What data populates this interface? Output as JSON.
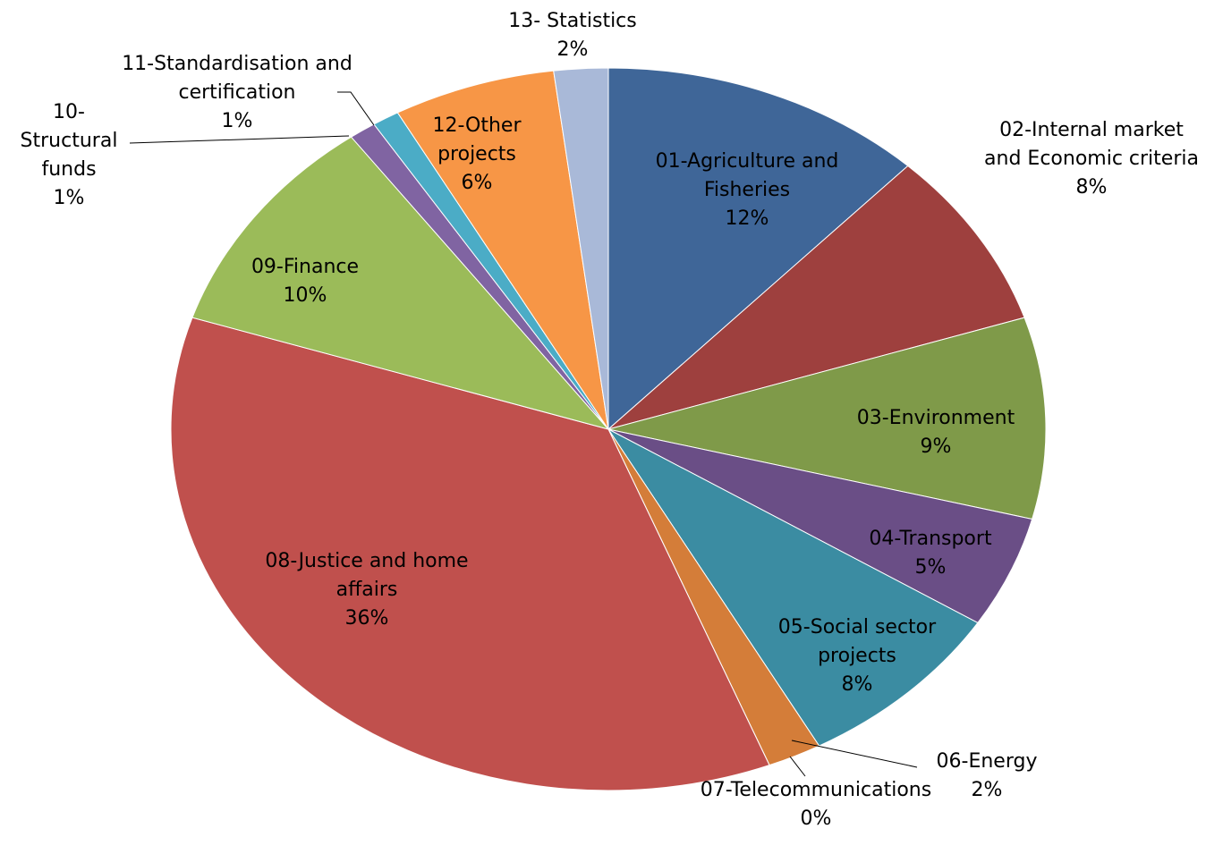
{
  "chart_data": {
    "type": "pie",
    "categories": [
      "01-Agriculture and Fisheries",
      "02-Internal market and Economic criteria",
      "03-Environment",
      "04-Transport",
      "05-Social sector projects",
      "06-Energy",
      "07-Telecommunications",
      "08-Justice and home affairs",
      "09-Finance",
      "10-Structural funds",
      "11-Standardisation and certification",
      "12-Other projects",
      "13- Statistics"
    ],
    "values": [
      12,
      8,
      9,
      5,
      8,
      2,
      0,
      36,
      10,
      1,
      1,
      6,
      2
    ],
    "value_labels": [
      "12%",
      "8%",
      "9%",
      "5%",
      "8%",
      "2%",
      "0%",
      "36%",
      "10%",
      "1%",
      "1%",
      "6%",
      "2%"
    ],
    "colors": [
      "#3f6698",
      "#9e403e",
      "#7f9a49",
      "#6a4e86",
      "#3b8ca2",
      "#d47d39",
      "#4a7cc0",
      "#c0504d",
      "#9bbb59",
      "#8064a2",
      "#4bacc6",
      "#f79646",
      "#a9b9d8"
    ]
  }
}
